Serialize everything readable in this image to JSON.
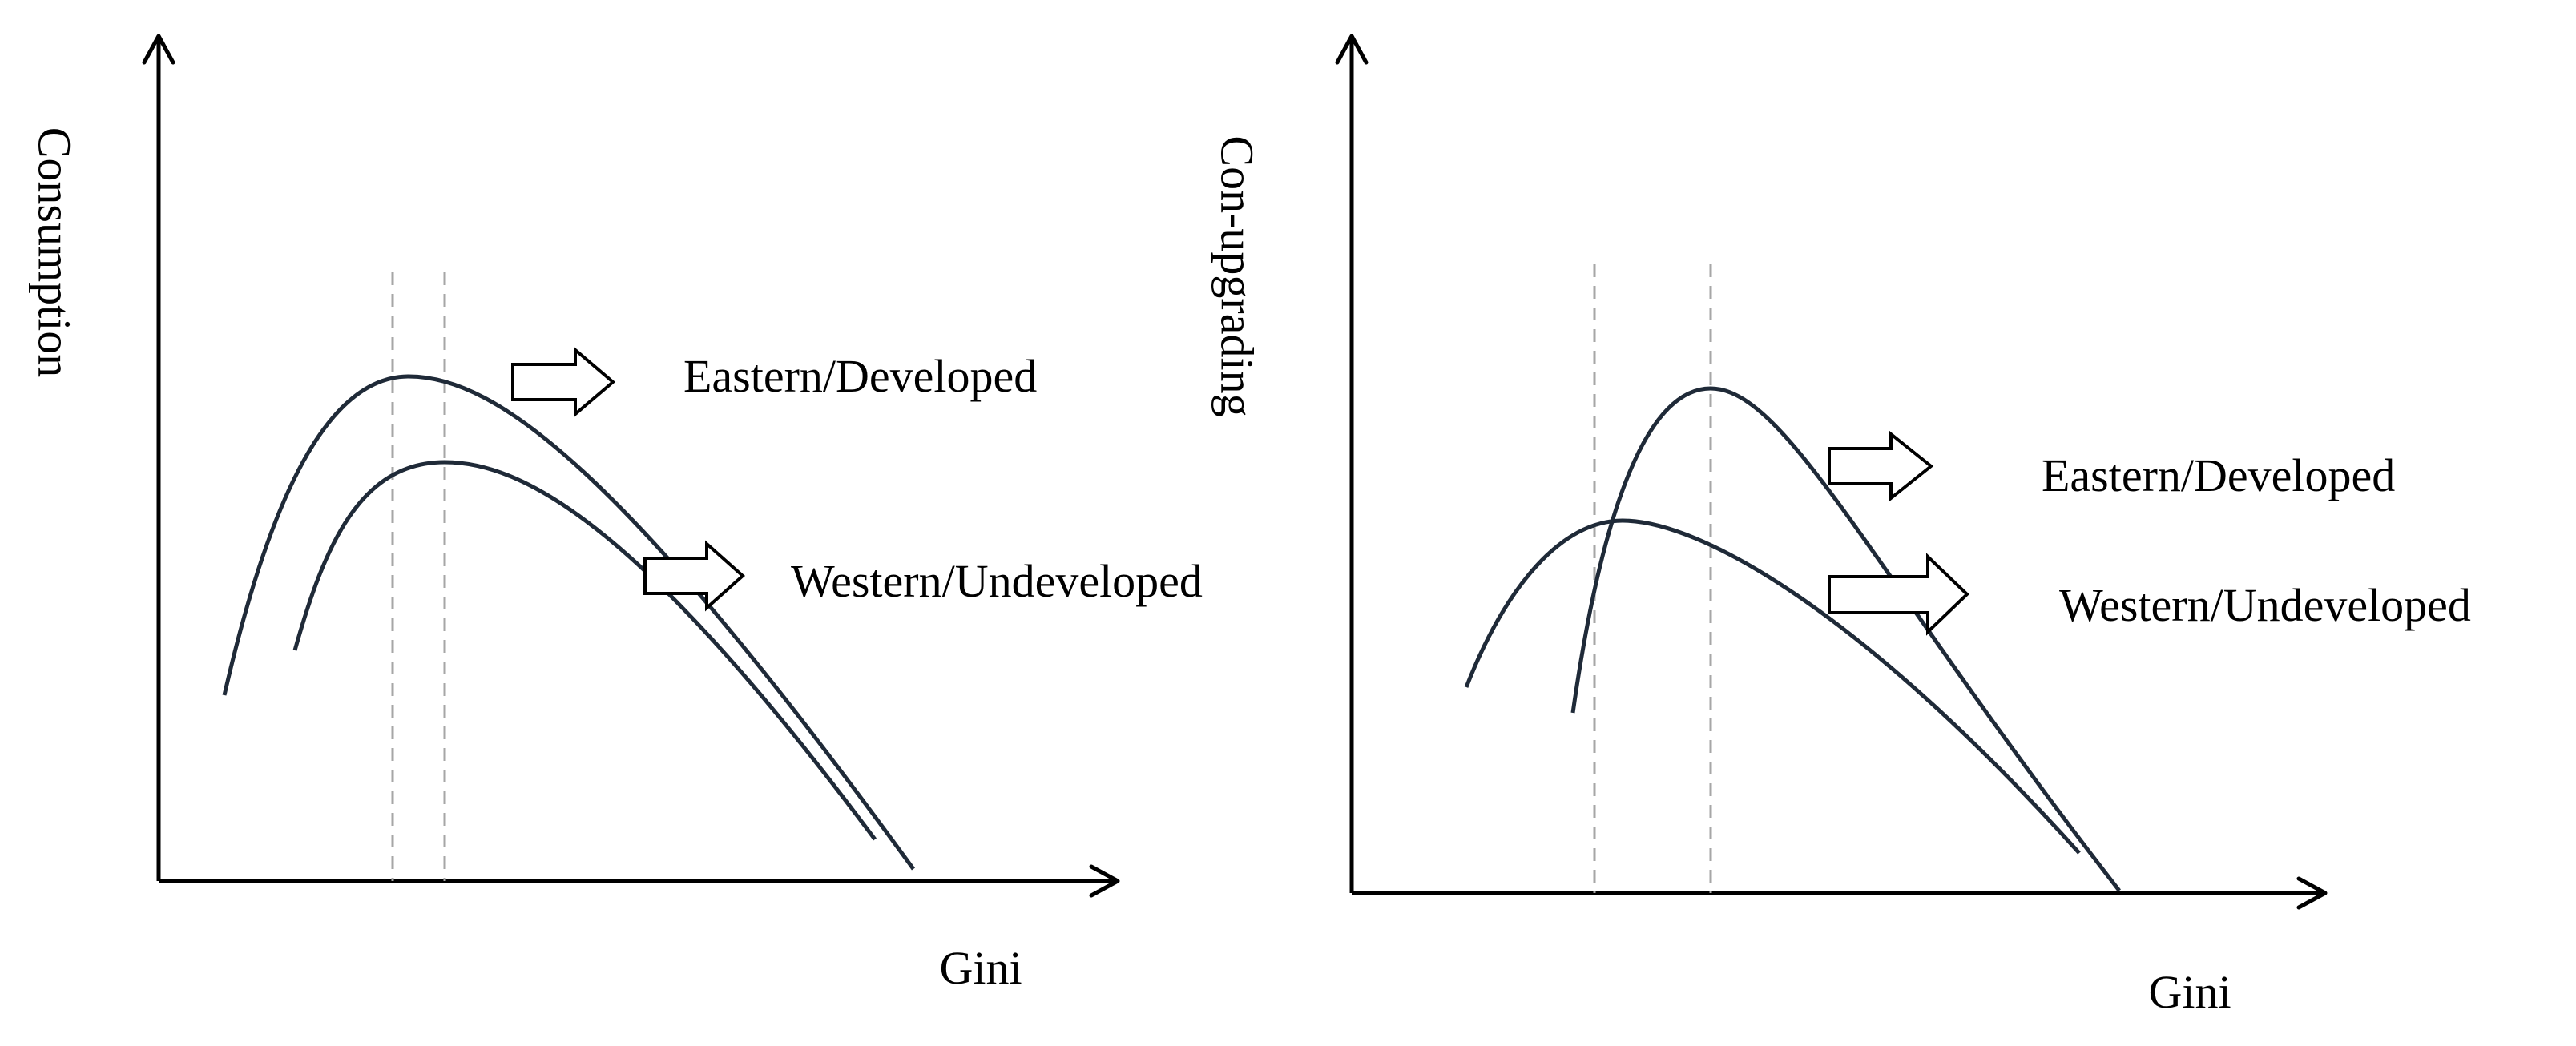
{
  "panels": [
    {
      "id": "left",
      "y_axis_label": "Consumption",
      "x_axis_label": "Gini",
      "series": [
        {
          "label": "Eastern/Developed"
        },
        {
          "label": "Western/Undeveloped"
        }
      ]
    },
    {
      "id": "right",
      "y_axis_label": "Con-upgrading",
      "x_axis_label": "Gini",
      "series": [
        {
          "label": "Eastern/Developed"
        },
        {
          "label": "Western/Undeveloped"
        }
      ]
    }
  ]
}
